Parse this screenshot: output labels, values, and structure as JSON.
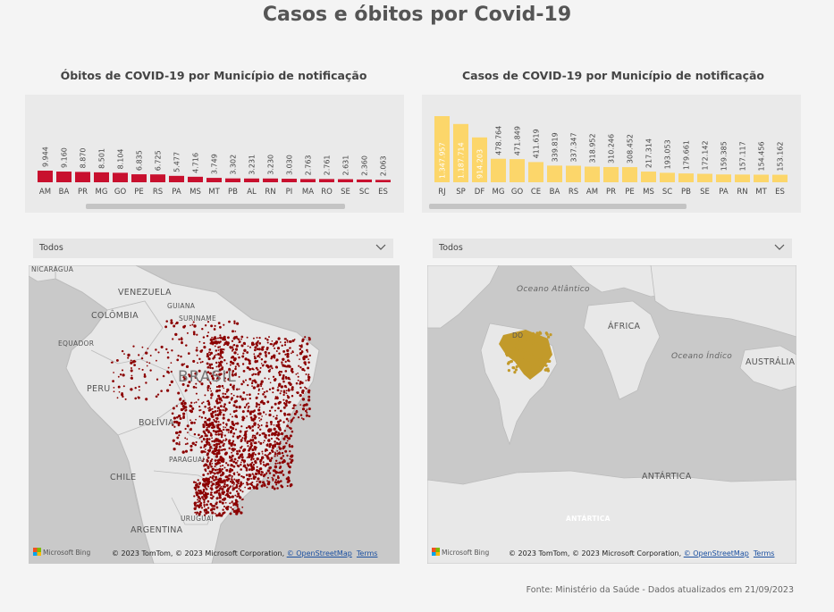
{
  "page": {
    "title": "Casos e óbitos por Covid-19",
    "source": "Fonte: Ministério da Saúde - Dados atualizados em 21/09/2023"
  },
  "chart_data": [
    {
      "type": "bar",
      "title": "Óbitos de COVID-19 por Município de notificação",
      "categories": [
        "AM",
        "BA",
        "PR",
        "MG",
        "GO",
        "PE",
        "RS",
        "PA",
        "MS",
        "MT",
        "PB",
        "AL",
        "RN",
        "PI",
        "MA",
        "RO",
        "SE",
        "SC",
        "ES"
      ],
      "values": [
        9944,
        9160,
        8870,
        8501,
        8104,
        6835,
        6725,
        5477,
        4716,
        3749,
        3302,
        3231,
        3230,
        3030,
        2763,
        2761,
        2631,
        2360,
        2063
      ],
      "labels": [
        "9.944",
        "9.160",
        "8.870",
        "8.501",
        "8.104",
        "6.835",
        "6.725",
        "5.477",
        "4.716",
        "3.749",
        "3.302",
        "3.231",
        "3.230",
        "3.030",
        "2.763",
        "2.761",
        "2.631",
        "2.360",
        "2.063"
      ],
      "color": "#c8102e"
    },
    {
      "type": "bar",
      "title": "Casos de COVID-19 por Município de notificação",
      "categories": [
        "RJ",
        "SP",
        "DF",
        "MG",
        "GO",
        "CE",
        "BA",
        "RS",
        "AM",
        "PR",
        "PE",
        "MS",
        "SC",
        "PB",
        "SE",
        "PA",
        "RN",
        "MT",
        "ES"
      ],
      "values": [
        1347957,
        1187714,
        914203,
        478764,
        471849,
        411619,
        339819,
        337347,
        318952,
        310246,
        308452,
        217314,
        193053,
        179661,
        172142,
        159385,
        157117,
        154456,
        153162
      ],
      "labels": [
        "1.347.957",
        "1.187.714",
        "914.203",
        "478.764",
        "471.849",
        "411.619",
        "339.819",
        "337.347",
        "318.952",
        "310.246",
        "308.452",
        "217.314",
        "193.053",
        "179.661",
        "172.142",
        "159.385",
        "157.117",
        "154.456",
        "153.162"
      ],
      "color": "#fcd66a"
    }
  ],
  "filters": {
    "left": "Todos",
    "right": "Todos"
  },
  "map_left": {
    "labels": {
      "nicaragua": "NICARÁGUA",
      "venezuela": "VENEZUELA",
      "guiana": "GUIANA",
      "suriname": "SURINAME",
      "colombia": "COLÔMBIA",
      "equador": "EQUADOR",
      "peru": "PERU",
      "brasil": "BRASIL",
      "bolivia": "BOLÍVIA",
      "paraguai": "PARAGUAI",
      "chile": "CHILE",
      "argentina": "ARGENTINA",
      "uruguai": "URUGUAI"
    },
    "dot_color": "#8b0000"
  },
  "map_right": {
    "labels": {
      "atlantico": "Oceano Atlântico",
      "africa": "ÁFRICA",
      "indico": "Oceano Índico",
      "australia": "AUSTRÁLIA",
      "antartica": "ANTÁRTICA",
      "antartica_small": "ANTÁRTICA",
      "do": "DO"
    },
    "fill_color": "#c29a2a"
  },
  "attribution": {
    "bing": "Microsoft Bing",
    "text": "© 2023 TomTom, © 2023 Microsoft Corporation,",
    "osm": "© OpenStreetMap",
    "terms": "Terms"
  }
}
